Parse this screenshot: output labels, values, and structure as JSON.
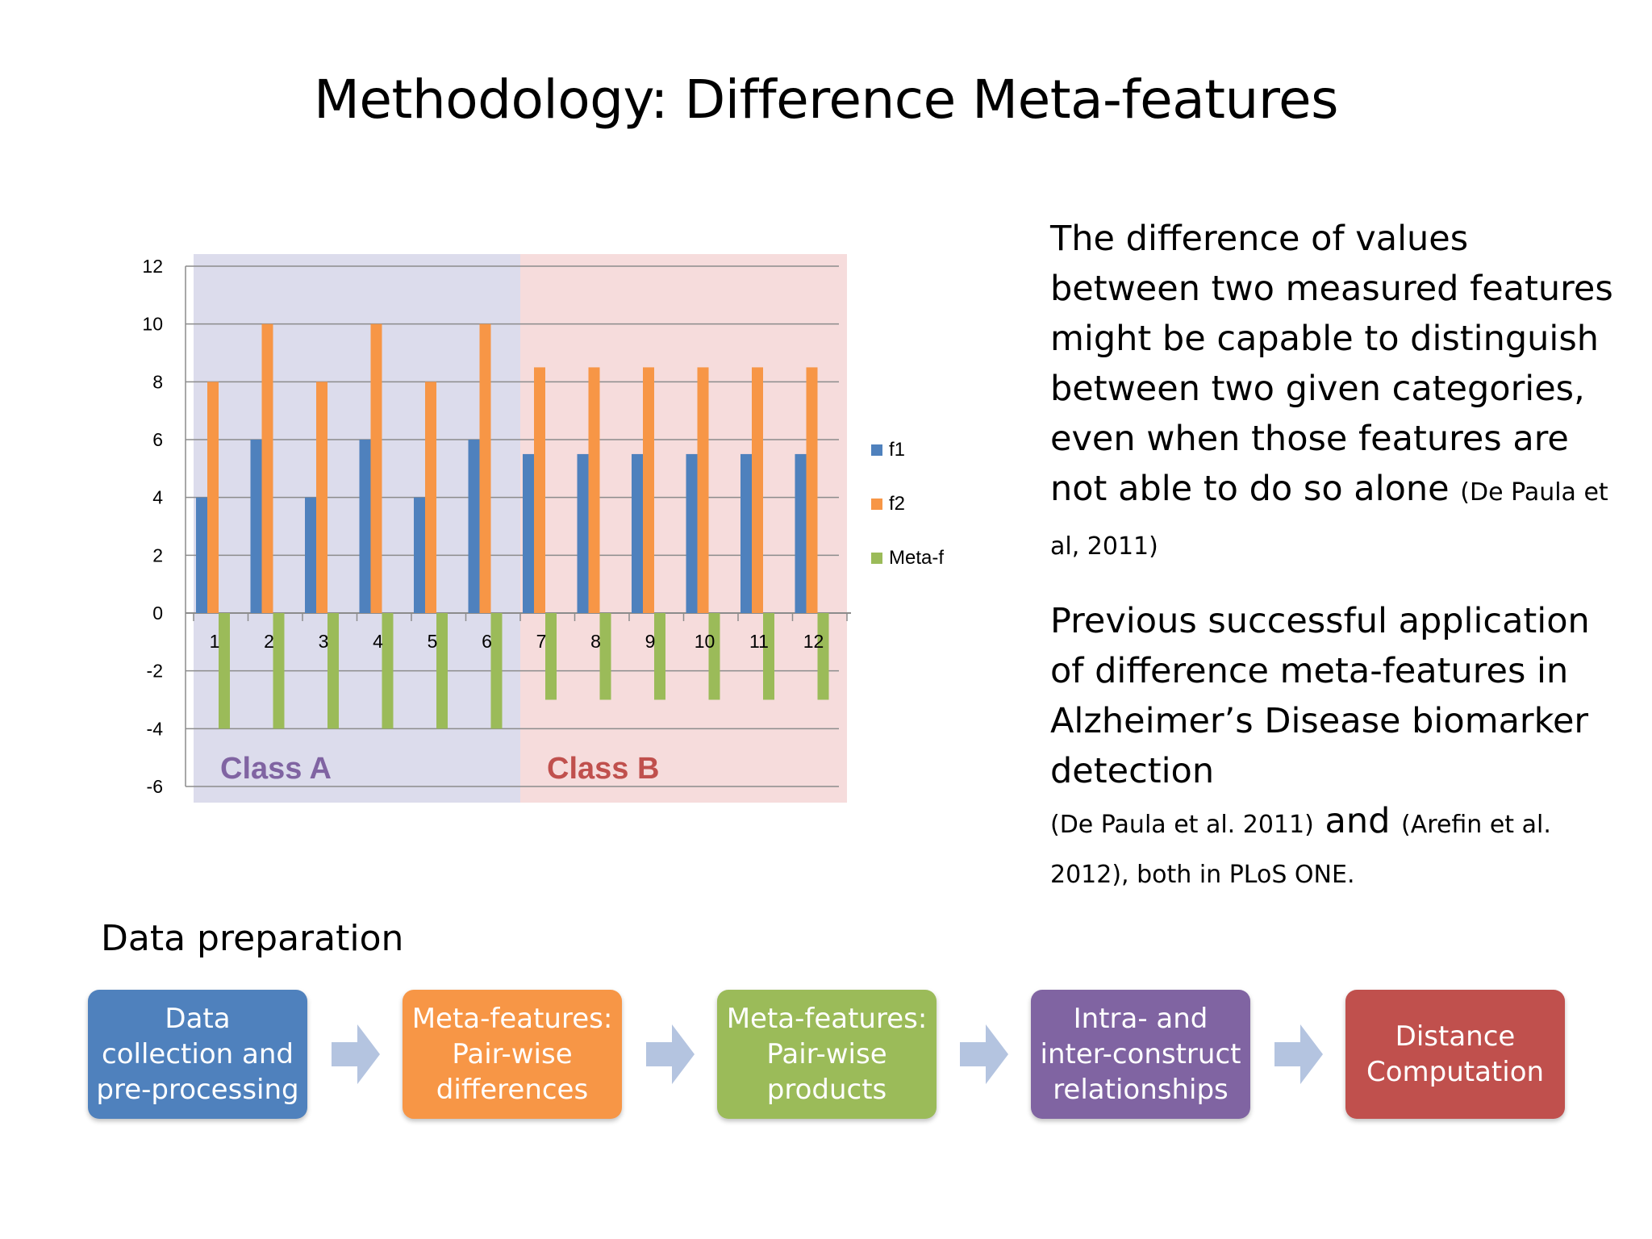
{
  "slide": {
    "title": "Methodology: Difference Meta-features"
  },
  "chart_data": {
    "type": "bar",
    "categories": [
      "1",
      "2",
      "3",
      "4",
      "5",
      "6",
      "7",
      "8",
      "9",
      "10",
      "11",
      "12"
    ],
    "series": [
      {
        "name": "f1",
        "values": [
          4,
          6,
          4,
          6,
          4,
          6,
          5.5,
          5.5,
          5.5,
          5.5,
          5.5,
          5.5
        ],
        "color": "#4f81bd"
      },
      {
        "name": "f2",
        "values": [
          8,
          10,
          8,
          10,
          8,
          10,
          8.5,
          8.5,
          8.5,
          8.5,
          8.5,
          8.5
        ],
        "color": "#f79646"
      },
      {
        "name": "Meta-f",
        "values": [
          -4,
          -4,
          -4,
          -4,
          -4,
          -4,
          -3,
          -3,
          -3,
          -3,
          -3,
          -3
        ],
        "color": "#9bbb59"
      }
    ],
    "ylim": [
      -6,
      12
    ],
    "yticks": [
      12,
      10,
      8,
      6,
      4,
      2,
      0,
      -2,
      -4,
      -6
    ],
    "grid": true,
    "legend_position": "right",
    "regions": [
      {
        "label": "Class A",
        "from_category": 1,
        "to_category": 6,
        "fill": "#dcdcec",
        "label_color": "#8064a2"
      },
      {
        "label": "Class B",
        "from_category": 7,
        "to_category": 12,
        "fill": "#f6dcdc",
        "label_color": "#c0504d"
      }
    ]
  },
  "text": {
    "p1_main": "The difference of values between two measured features might be capable to distinguish between two given categories, even when those features are not able to do so alone",
    "p1_cite": "(De Paula et al, 2011)",
    "p2_main": "Previous successful application of difference meta-features in Alzheimer’s Disease biomarker detection",
    "p2_cite1": "(De Paula et al. 2011)",
    "p2_and": "and",
    "p2_cite2": "(Arefin et al. 2012), both in PLoS ONE."
  },
  "flow": {
    "label": "Data preparation",
    "steps": [
      {
        "label": "Data collection and pre-processing",
        "color": "#4f81bd"
      },
      {
        "label": "Meta-features: Pair-wise differences",
        "color": "#f79646"
      },
      {
        "label": "Meta-features: Pair-wise products",
        "color": "#9bbb59"
      },
      {
        "label": "Intra- and inter-construct relationships",
        "color": "#8064a2"
      },
      {
        "label": "Distance Computation",
        "color": "#c0504d"
      }
    ],
    "arrow_color": "#b4c4e0"
  }
}
